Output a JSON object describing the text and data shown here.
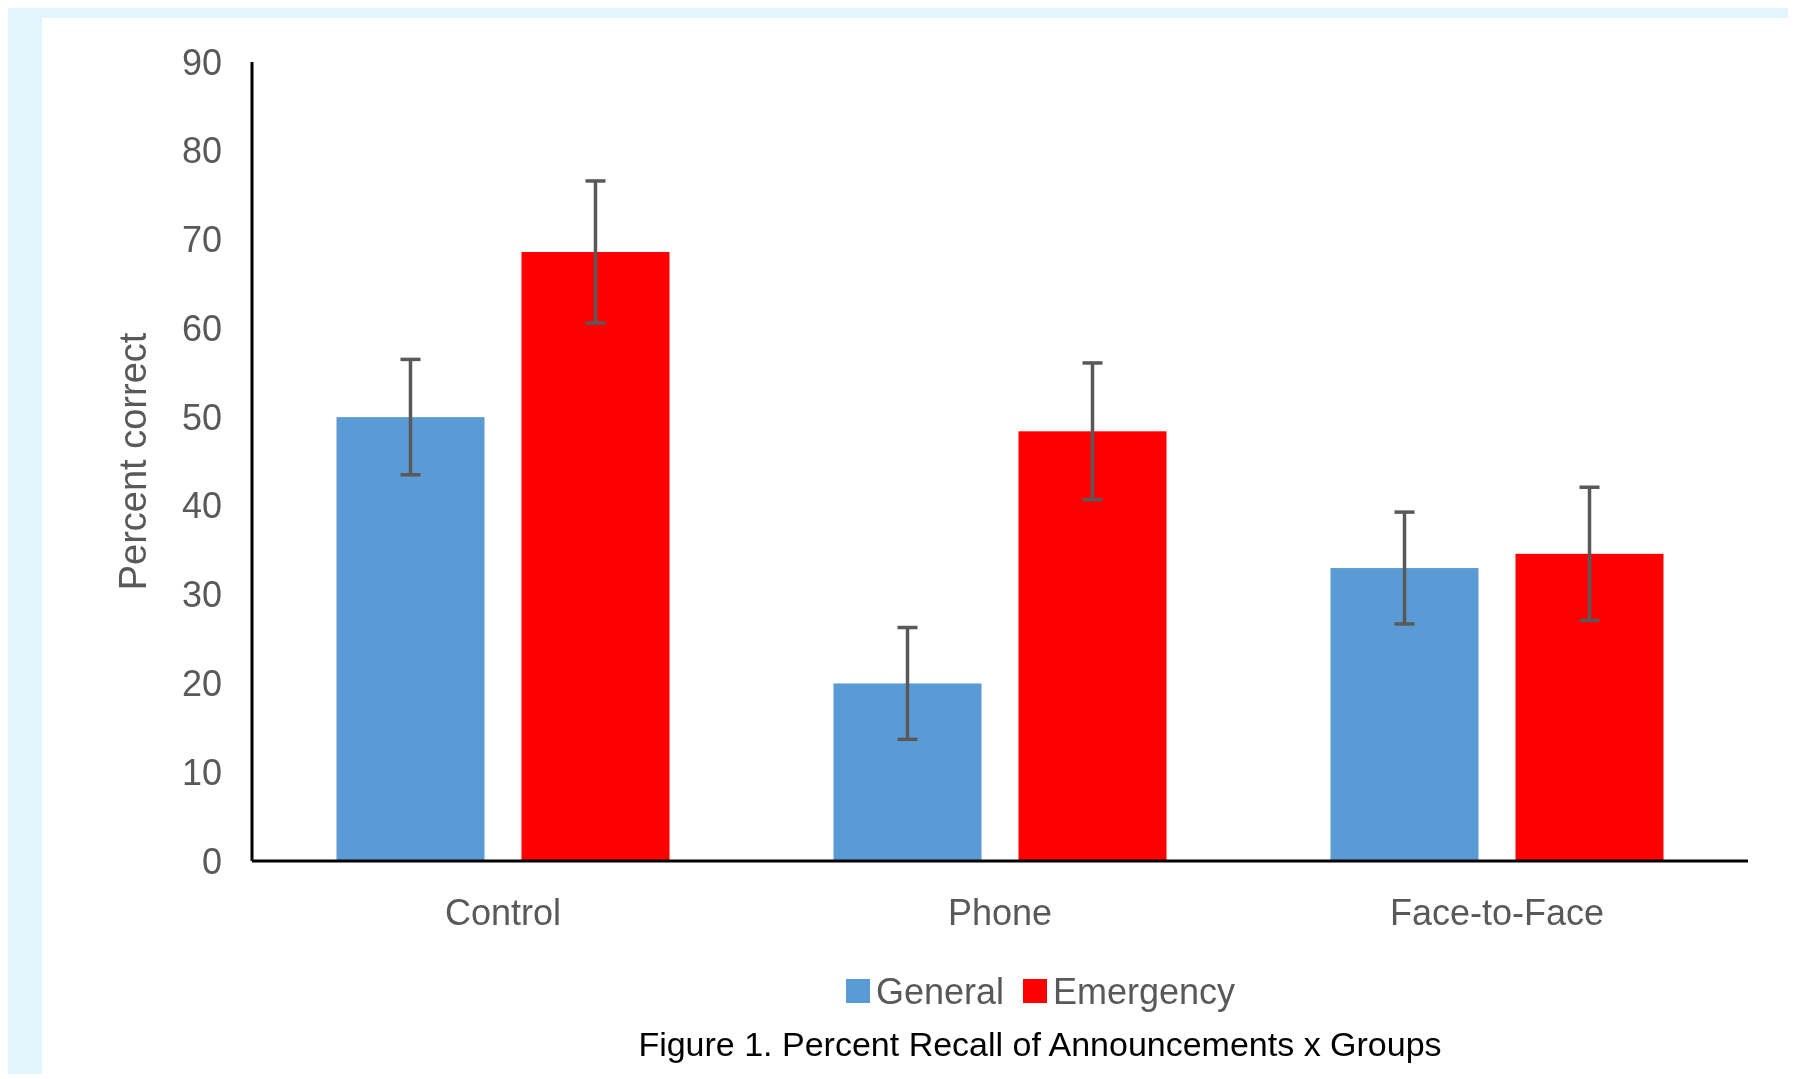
{
  "chart_data": {
    "type": "bar",
    "title": "Figure 1. Percent Recall of Announcements x Groups",
    "ylabel": "Percent correct",
    "categories": [
      "Control",
      "Phone",
      "Face-to-Face"
    ],
    "series": [
      {
        "name": "General",
        "color": "#5b9bd5",
        "values": [
          50,
          20,
          33
        ],
        "errors": [
          6.5,
          6.3,
          6.3
        ]
      },
      {
        "name": "Emergency",
        "color": "#ff0000",
        "values": [
          68.6,
          48.4,
          34.6
        ],
        "errors": [
          8,
          7.7,
          7.5
        ]
      }
    ],
    "ylim": [
      0,
      90
    ],
    "yticks": [
      0,
      10,
      20,
      30,
      40,
      50,
      60,
      70,
      80,
      90
    ],
    "grid": false,
    "legend": "bottom"
  }
}
